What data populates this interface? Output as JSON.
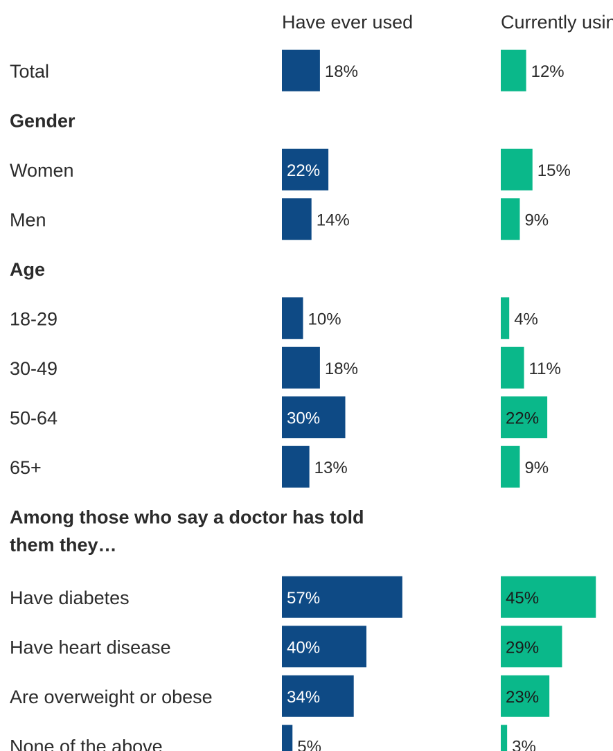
{
  "colors": {
    "ever_used": "#0e4a85",
    "currently_using": "#0ab88a",
    "text": "#2b2b2b"
  },
  "chart_data": {
    "type": "bar",
    "orientation": "horizontal",
    "columns": [
      "Have ever used",
      "Currently using"
    ],
    "series": [
      {
        "name": "Have ever used",
        "values": [
          18,
          22,
          14,
          10,
          18,
          30,
          13,
          57,
          40,
          34,
          5
        ]
      },
      {
        "name": "Currently using",
        "values": [
          12,
          15,
          9,
          4,
          11,
          22,
          9,
          45,
          29,
          23,
          3
        ]
      }
    ],
    "value_suffix": "%",
    "rows": [
      {
        "kind": "data",
        "label": "Total",
        "ever": 18,
        "current": 12
      },
      {
        "kind": "section",
        "label": "Gender"
      },
      {
        "kind": "data",
        "label": "Women",
        "ever": 22,
        "current": 15
      },
      {
        "kind": "data",
        "label": "Men",
        "ever": 14,
        "current": 9
      },
      {
        "kind": "section",
        "label": "Age"
      },
      {
        "kind": "data",
        "label": "18-29",
        "ever": 10,
        "current": 4
      },
      {
        "kind": "data",
        "label": "30-49",
        "ever": 18,
        "current": 11
      },
      {
        "kind": "data",
        "label": "50-64",
        "ever": 30,
        "current": 22
      },
      {
        "kind": "data",
        "label": "65+",
        "ever": 13,
        "current": 9
      },
      {
        "kind": "section",
        "label": [
          "Among those who say a doctor has told",
          "them they…"
        ]
      },
      {
        "kind": "data",
        "label": "Have diabetes",
        "ever": 57,
        "current": 45
      },
      {
        "kind": "data",
        "label": "Have heart disease",
        "ever": 40,
        "current": 29
      },
      {
        "kind": "data",
        "label": "Are overweight or obese",
        "ever": 34,
        "current": 23
      },
      {
        "kind": "data",
        "label": "None of the above",
        "ever": 5,
        "current": 3
      }
    ],
    "title": "",
    "xlabel": "",
    "ylabel": "",
    "grid": false,
    "legend": "none"
  }
}
